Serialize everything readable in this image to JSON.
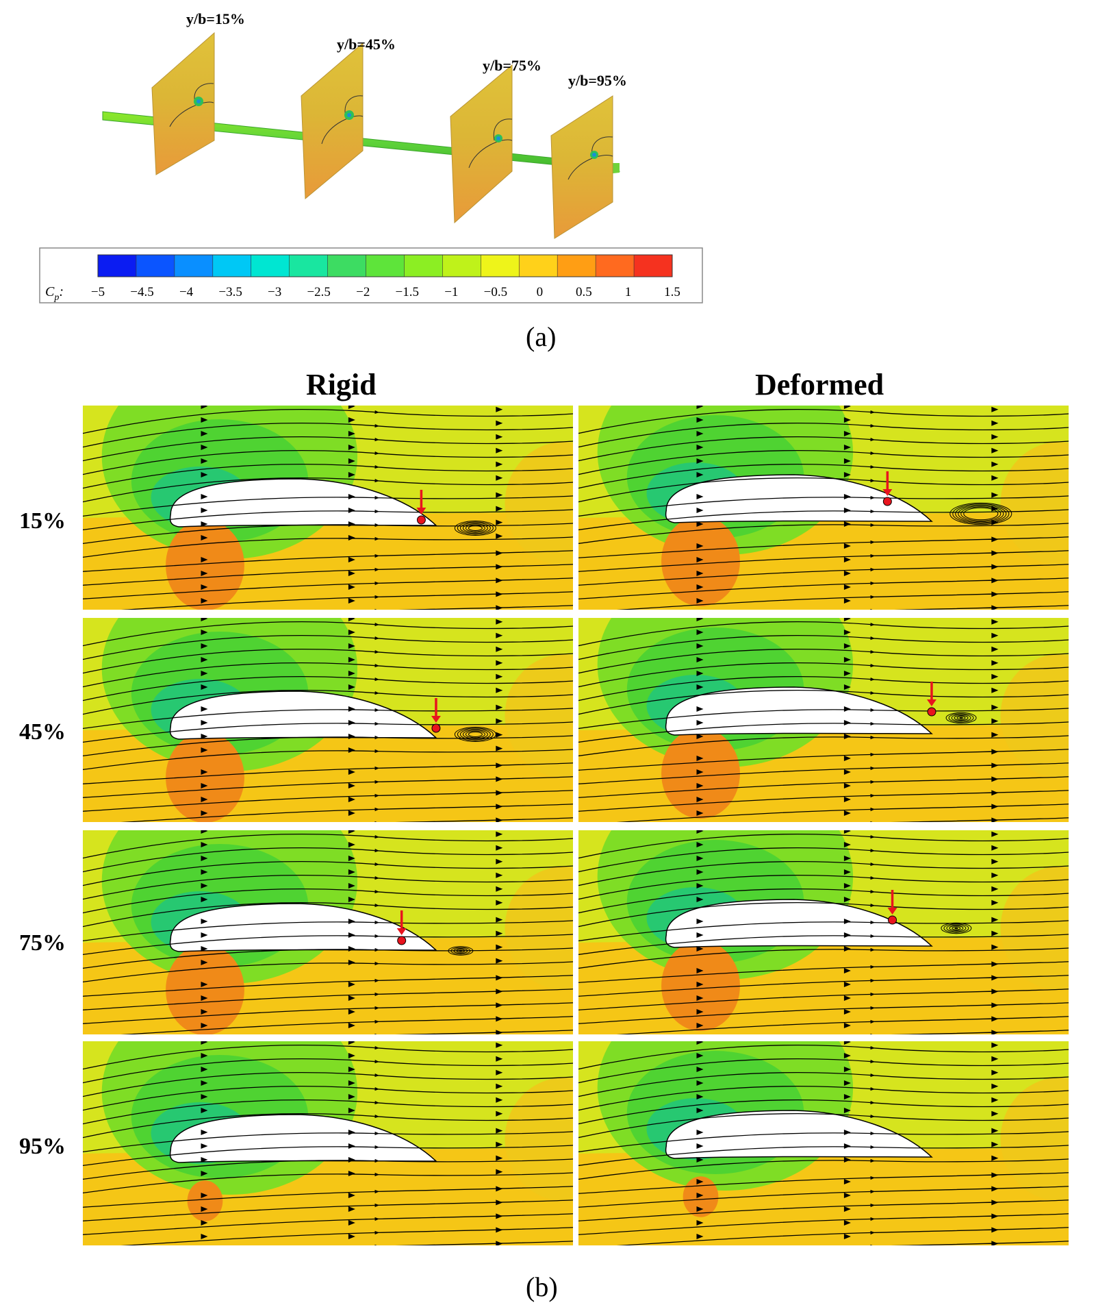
{
  "panel_a": {
    "slice_labels": [
      "y/b=15%",
      "y/b=45%",
      "y/b=75%",
      "y/b=95%"
    ],
    "colorbar": {
      "label": "C",
      "label_sub": "p",
      "label_suffix": ":",
      "ticks": [
        "−5",
        "−4.5",
        "−4",
        "−3.5",
        "−3",
        "−2.5",
        "−2",
        "−1.5",
        "−1",
        "−0.5",
        "0",
        "0.5",
        "1",
        "1.5"
      ],
      "colors": [
        "#0b1cf2",
        "#0b55ff",
        "#0a8fff",
        "#00c8f5",
        "#00e6d2",
        "#19e6a0",
        "#3ddc62",
        "#5ee43a",
        "#8cee23",
        "#bff21a",
        "#eef41a",
        "#ffd11a",
        "#ff9e14",
        "#ff6a1f",
        "#f5321f"
      ]
    },
    "caption": "(a)"
  },
  "panel_b": {
    "columns": [
      "Rigid",
      "Deformed"
    ],
    "rows": [
      "15%",
      "45%",
      "75%",
      "95%"
    ],
    "caption": "(b)",
    "colors": {
      "far_field": "#d6e41e",
      "suction_1": "#7fdd25",
      "suction_2": "#4fd332",
      "suction_3": "#27c871",
      "pressure_side": "#f5c616",
      "stagnation": "#f08a18",
      "marker": "#e8141e"
    }
  }
}
